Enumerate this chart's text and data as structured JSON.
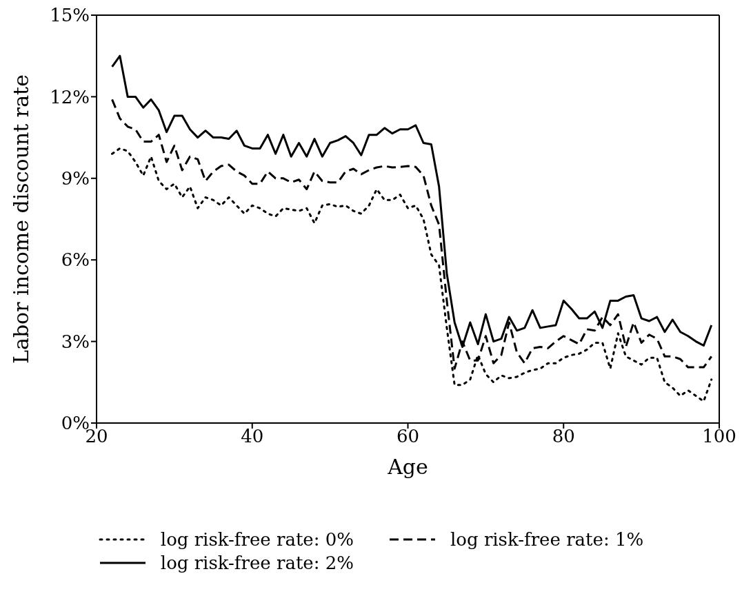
{
  "chart_data": {
    "type": "line",
    "xlabel": "Age",
    "ylabel": "Labor income discount rate",
    "x": [
      22,
      23,
      24,
      25,
      26,
      27,
      28,
      29,
      30,
      31,
      32,
      33,
      34,
      35,
      36,
      37,
      38,
      39,
      40,
      41,
      42,
      43,
      44,
      45,
      46,
      47,
      48,
      49,
      50,
      51,
      52,
      53,
      54,
      55,
      56,
      57,
      58,
      59,
      60,
      61,
      62,
      63,
      64,
      65,
      66,
      67,
      68,
      69,
      70,
      71,
      72,
      73,
      74,
      75,
      76,
      77,
      78,
      79,
      80,
      81,
      82,
      83,
      84,
      85,
      86,
      87,
      88,
      89,
      90,
      91,
      92,
      93,
      94,
      95,
      96,
      97,
      98,
      99
    ],
    "series": [
      {
        "name": "log risk-free rate: 0%",
        "color": "#000000",
        "line_style": "dotted",
        "values": [
          9.9,
          10.1,
          10.0,
          9.6,
          9.1,
          9.8,
          8.9,
          8.6,
          8.8,
          8.3,
          8.7,
          7.9,
          8.3,
          8.2,
          8.0,
          8.3,
          8.0,
          7.7,
          8.0,
          7.9,
          7.7,
          7.6,
          7.9,
          7.85,
          7.8,
          7.9,
          7.35,
          8.0,
          8.05,
          7.95,
          8.0,
          7.8,
          7.7,
          8.0,
          8.6,
          8.2,
          8.2,
          8.4,
          7.9,
          8.0,
          7.5,
          6.2,
          5.8,
          3.5,
          1.4,
          1.4,
          1.6,
          2.5,
          1.8,
          1.5,
          1.75,
          1.65,
          1.7,
          1.85,
          1.95,
          2.0,
          2.2,
          2.2,
          2.4,
          2.5,
          2.55,
          2.7,
          2.95,
          2.95,
          2.0,
          3.3,
          2.45,
          2.3,
          2.15,
          2.4,
          2.4,
          1.5,
          1.3,
          1.0,
          1.2,
          1.0,
          0.8,
          1.6
        ]
      },
      {
        "name": "log risk-free rate: 1%",
        "color": "#000000",
        "line_style": "dashed",
        "values": [
          11.9,
          11.2,
          10.9,
          10.8,
          10.35,
          10.35,
          10.6,
          9.6,
          10.2,
          9.3,
          9.8,
          9.7,
          8.9,
          9.25,
          9.45,
          9.5,
          9.25,
          9.1,
          8.8,
          8.8,
          9.25,
          9.0,
          9.0,
          8.85,
          8.95,
          8.6,
          9.25,
          8.9,
          8.85,
          8.85,
          9.25,
          9.35,
          9.15,
          9.3,
          9.4,
          9.45,
          9.4,
          9.42,
          9.45,
          9.42,
          9.1,
          8.0,
          7.3,
          4.5,
          2.0,
          3.0,
          2.3,
          2.3,
          3.2,
          2.2,
          2.5,
          3.7,
          2.6,
          2.2,
          2.75,
          2.8,
          2.75,
          3.0,
          3.2,
          3.05,
          2.9,
          3.45,
          3.4,
          3.9,
          3.6,
          4.0,
          2.8,
          3.7,
          2.95,
          3.25,
          3.1,
          2.45,
          2.45,
          2.35,
          2.05,
          2.05,
          2.05,
          2.45
        ]
      },
      {
        "name": "log risk-free rate: 2%",
        "color": "#000000",
        "line_style": "solid",
        "values": [
          13.1,
          13.5,
          12.0,
          12.0,
          11.6,
          11.9,
          11.5,
          10.7,
          11.3,
          11.3,
          10.8,
          10.5,
          10.75,
          10.5,
          10.5,
          10.45,
          10.75,
          10.2,
          10.1,
          10.1,
          10.6,
          9.9,
          10.6,
          9.8,
          10.3,
          9.8,
          10.45,
          9.8,
          10.3,
          10.4,
          10.55,
          10.3,
          9.85,
          10.6,
          10.6,
          10.85,
          10.65,
          10.8,
          10.8,
          10.95,
          10.3,
          10.25,
          8.7,
          5.5,
          3.7,
          2.8,
          3.7,
          2.9,
          4.0,
          3.0,
          3.1,
          3.9,
          3.4,
          3.5,
          4.15,
          3.5,
          3.55,
          3.6,
          4.5,
          4.2,
          3.85,
          3.85,
          4.1,
          3.5,
          4.5,
          4.5,
          4.65,
          4.7,
          3.85,
          3.75,
          3.9,
          3.35,
          3.8,
          3.35,
          3.2,
          3.0,
          2.85,
          3.6
        ]
      }
    ],
    "xlim": [
      20,
      100
    ],
    "xticks": [
      20,
      40,
      60,
      80,
      100
    ],
    "ylim": [
      0,
      15
    ],
    "yticks": [
      {
        "value": 0,
        "label": "0%"
      },
      {
        "value": 3,
        "label": "3%"
      },
      {
        "value": 6,
        "label": "6%"
      },
      {
        "value": 9,
        "label": "9%"
      },
      {
        "value": 12,
        "label": "12%"
      },
      {
        "value": 15,
        "label": "15%"
      }
    ],
    "grid": false,
    "legend": "bottom",
    "marker": "none"
  }
}
